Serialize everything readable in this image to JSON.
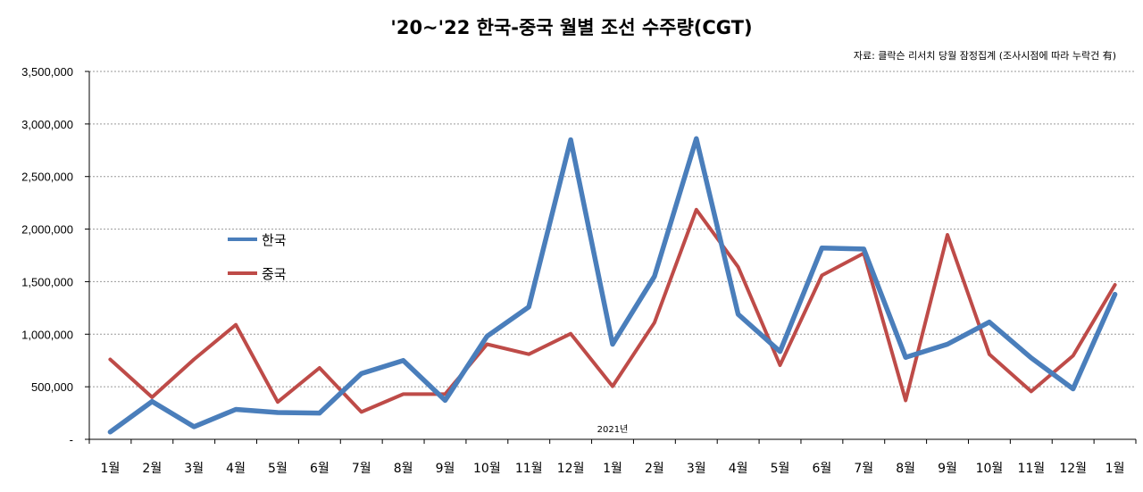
{
  "chart_data": {
    "type": "line",
    "title": "'20~'22 한국-중국 월별 조선 수주량(CGT)",
    "source_note": "자료: 클락슨 리서치 당월 잠정집계 (조사시점에 따라 누락건 有)",
    "year_note": "2021년",
    "categories": [
      "1월",
      "2월",
      "3월",
      "4월",
      "5월",
      "6월",
      "7월",
      "8월",
      "9월",
      "10월",
      "11월",
      "12월",
      "1월",
      "2월",
      "3월",
      "4월",
      "5월",
      "6월",
      "7월",
      "8월",
      "9월",
      "10월",
      "11월",
      "12월",
      "1월"
    ],
    "series": [
      {
        "name": "한국",
        "color": "#4a7ebb",
        "values": [
          70000,
          360000,
          120000,
          285000,
          255000,
          250000,
          625000,
          750000,
          370000,
          980000,
          1260000,
          2850000,
          905000,
          1550000,
          2860000,
          1190000,
          835000,
          1820000,
          1810000,
          780000,
          905000,
          1115000,
          775000,
          480000,
          1380000
        ]
      },
      {
        "name": "중국",
        "color": "#be4b48",
        "values": [
          760000,
          400000,
          760000,
          1090000,
          355000,
          680000,
          260000,
          430000,
          430000,
          905000,
          810000,
          1005000,
          505000,
          1110000,
          2185000,
          1640000,
          705000,
          1560000,
          1770000,
          370000,
          1945000,
          810000,
          455000,
          795000,
          1470000
        ]
      }
    ],
    "ylim": [
      0,
      3500000
    ],
    "yticks": [
      0,
      500000,
      1000000,
      1500000,
      2000000,
      2500000,
      3000000,
      3500000
    ],
    "ytick_labels": [
      "-",
      "500,000",
      "1,000,000",
      "1,500,000",
      "2,000,000",
      "2,500,000",
      "3,000,000",
      "3,500,000"
    ],
    "grid": "horizontal dashed",
    "legend_position": "left-middle"
  }
}
